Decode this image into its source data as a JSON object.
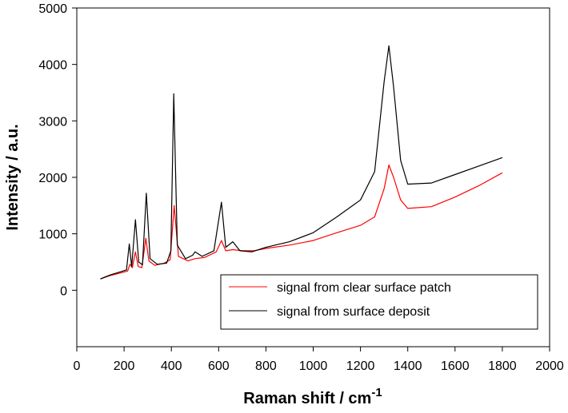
{
  "chart_data": {
    "type": "line",
    "title": "",
    "xlabel": "Raman shift / cm",
    "xlabel_superscript": "-1",
    "ylabel": "Intensity / a.u.",
    "xlim": [
      0,
      2000
    ],
    "ylim": [
      -1000,
      5000
    ],
    "xticks": [
      0,
      200,
      400,
      600,
      800,
      1000,
      1200,
      1400,
      1600,
      1800,
      2000
    ],
    "yticks": [
      0,
      1000,
      2000,
      3000,
      4000,
      5000
    ],
    "grid": false,
    "legend_position": "bottom-right",
    "series": [
      {
        "name": "signal from clear surface patch",
        "color": "#ff0000",
        "points": [
          [
            100,
            200
          ],
          [
            140,
            260
          ],
          [
            180,
            300
          ],
          [
            215,
            340
          ],
          [
            225,
            460
          ],
          [
            235,
            400
          ],
          [
            248,
            680
          ],
          [
            260,
            420
          ],
          [
            275,
            400
          ],
          [
            292,
            920
          ],
          [
            305,
            520
          ],
          [
            330,
            440
          ],
          [
            370,
            480
          ],
          [
            395,
            540
          ],
          [
            412,
            1500
          ],
          [
            430,
            600
          ],
          [
            470,
            520
          ],
          [
            500,
            560
          ],
          [
            540,
            580
          ],
          [
            590,
            680
          ],
          [
            612,
            880
          ],
          [
            630,
            700
          ],
          [
            660,
            720
          ],
          [
            700,
            700
          ],
          [
            750,
            700
          ],
          [
            800,
            740
          ],
          [
            900,
            800
          ],
          [
            1000,
            880
          ],
          [
            1100,
            1020
          ],
          [
            1200,
            1150
          ],
          [
            1260,
            1300
          ],
          [
            1300,
            1800
          ],
          [
            1320,
            2220
          ],
          [
            1340,
            2000
          ],
          [
            1370,
            1600
          ],
          [
            1400,
            1450
          ],
          [
            1500,
            1480
          ],
          [
            1600,
            1650
          ],
          [
            1700,
            1850
          ],
          [
            1800,
            2080
          ]
        ]
      },
      {
        "name": "signal from surface deposit",
        "color": "#000000",
        "points": [
          [
            100,
            200
          ],
          [
            140,
            270
          ],
          [
            180,
            320
          ],
          [
            210,
            360
          ],
          [
            222,
            820
          ],
          [
            232,
            420
          ],
          [
            248,
            1250
          ],
          [
            262,
            500
          ],
          [
            278,
            450
          ],
          [
            294,
            1720
          ],
          [
            310,
            560
          ],
          [
            340,
            460
          ],
          [
            380,
            480
          ],
          [
            398,
            700
          ],
          [
            410,
            3480
          ],
          [
            425,
            800
          ],
          [
            460,
            560
          ],
          [
            490,
            620
          ],
          [
            500,
            680
          ],
          [
            530,
            600
          ],
          [
            580,
            700
          ],
          [
            612,
            1560
          ],
          [
            630,
            760
          ],
          [
            660,
            860
          ],
          [
            690,
            700
          ],
          [
            740,
            680
          ],
          [
            800,
            760
          ],
          [
            900,
            860
          ],
          [
            1000,
            1020
          ],
          [
            1100,
            1300
          ],
          [
            1200,
            1600
          ],
          [
            1260,
            2100
          ],
          [
            1300,
            3700
          ],
          [
            1320,
            4330
          ],
          [
            1340,
            3600
          ],
          [
            1370,
            2300
          ],
          [
            1400,
            1880
          ],
          [
            1500,
            1900
          ],
          [
            1600,
            2050
          ],
          [
            1700,
            2200
          ],
          [
            1800,
            2350
          ]
        ]
      }
    ]
  }
}
